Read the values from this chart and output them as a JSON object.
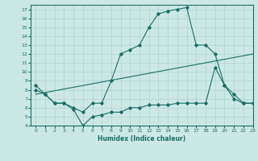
{
  "xlabel": "Humidex (Indice chaleur)",
  "background_color": "#cce8e5",
  "line_color": "#1a6e65",
  "grid_color": "#aed4d0",
  "xlim": [
    -0.5,
    23
  ],
  "ylim": [
    4,
    17.5
  ],
  "xticks": [
    0,
    1,
    2,
    3,
    4,
    5,
    6,
    7,
    8,
    9,
    10,
    11,
    12,
    13,
    14,
    15,
    16,
    17,
    18,
    19,
    20,
    21,
    22,
    23
  ],
  "yticks": [
    4,
    5,
    6,
    7,
    8,
    9,
    10,
    11,
    12,
    13,
    14,
    15,
    16,
    17
  ],
  "curve1_x": [
    0,
    1,
    2,
    3,
    4,
    5,
    6,
    7,
    8,
    9,
    10,
    11,
    12,
    13,
    14,
    15,
    16,
    17,
    18,
    19,
    20,
    21,
    22,
    23
  ],
  "curve1_y": [
    8.5,
    7.5,
    6.5,
    6.5,
    6.0,
    5.5,
    6.5,
    6.5,
    9.0,
    12.0,
    12.5,
    13.0,
    15.0,
    16.5,
    16.8,
    17.0,
    17.2,
    13.0,
    13.0,
    12.0,
    8.5,
    7.5,
    6.5,
    6.5
  ],
  "curve2_x": [
    0,
    1,
    2,
    3,
    4,
    5,
    6,
    7,
    8,
    9,
    10,
    11,
    12,
    13,
    14,
    15,
    16,
    17,
    18,
    19,
    20,
    21,
    22,
    23
  ],
  "curve2_y": [
    8.0,
    7.5,
    6.5,
    6.5,
    5.8,
    4.0,
    5.0,
    5.2,
    5.5,
    5.5,
    6.0,
    6.0,
    6.3,
    6.3,
    6.3,
    6.5,
    6.5,
    6.5,
    6.5,
    10.5,
    8.5,
    7.0,
    6.5,
    6.5
  ],
  "curve3_x": [
    0,
    23
  ],
  "curve3_y": [
    7.5,
    12.0
  ]
}
